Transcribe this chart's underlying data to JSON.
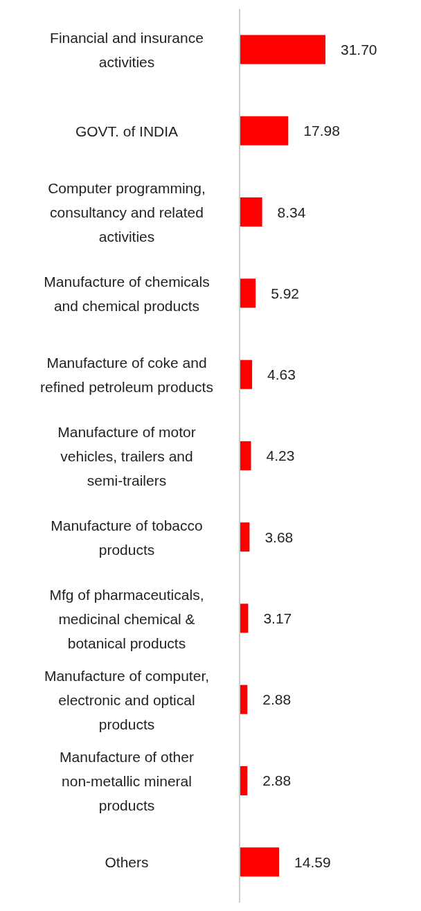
{
  "chart_data": {
    "type": "bar",
    "orientation": "horizontal",
    "categories": [
      "Financial and insurance activities",
      "GOVT. of INDIA",
      "Computer programming, consultancy and related activities",
      "Manufacture of chemicals and chemical products",
      "Manufacture of coke and refined petroleum products",
      "Manufacture of motor vehicles, trailers and semi-trailers",
      "Manufacture of tobacco products",
      "Mfg of pharmaceuticals, medicinal chemical & botanical products",
      "Manufacture of computer, electronic and optical products",
      "Manufacture of other non-metallic mineral products",
      "Others"
    ],
    "values": [
      31.7,
      17.98,
      8.34,
      5.92,
      4.63,
      4.23,
      3.68,
      3.17,
      2.88,
      2.88,
      14.59
    ],
    "value_labels": [
      "31.70",
      "17.98",
      "8.34",
      "5.92",
      "4.63",
      "4.23",
      "3.68",
      "3.17",
      "2.88",
      "2.88",
      "14.59"
    ],
    "color": "#ff0000",
    "grid": false
  }
}
